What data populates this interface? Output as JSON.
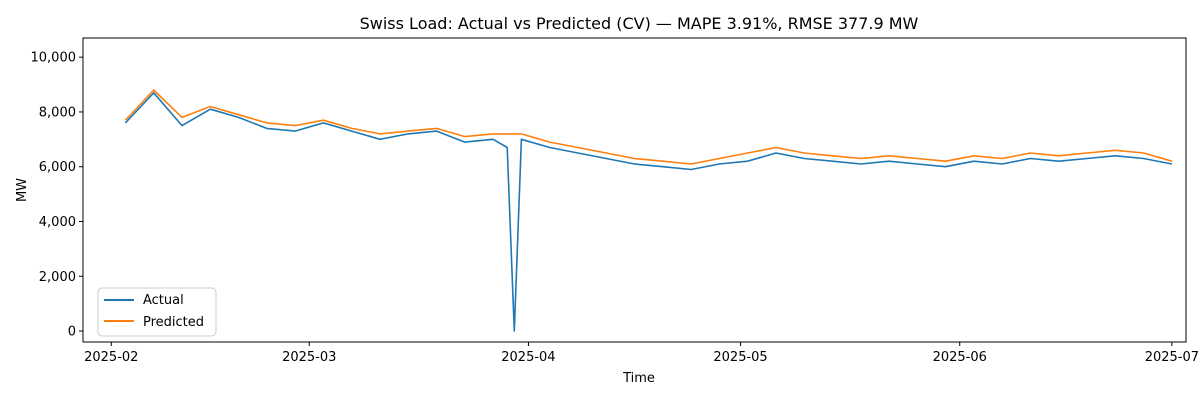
{
  "chart_data": {
    "type": "line",
    "title": "Swiss Load: Actual vs Predicted (CV) — MAPE 3.91%, RMSE 377.9 MW",
    "xlabel": "Time",
    "ylabel": "MW",
    "x_tick_labels": [
      "2025-02",
      "2025-03",
      "2025-04",
      "2025-05",
      "2025-06",
      "2025-07"
    ],
    "x_tick_dates": [
      "2025-02-01",
      "2025-03-01",
      "2025-04-01",
      "2025-05-01",
      "2025-06-01",
      "2025-07-01"
    ],
    "y_tick_values": [
      0,
      2000,
      4000,
      6000,
      8000,
      10000
    ],
    "y_tick_labels": [
      "0",
      "2,000",
      "4,000",
      "6,000",
      "8,000",
      "10,000"
    ],
    "xlim": [
      "2025-01-28",
      "2025-07-03"
    ],
    "ylim": [
      -400,
      10700
    ],
    "grid": false,
    "legend_position": "lower-left",
    "series": [
      {
        "name": "Actual",
        "color": "#1f77b4",
        "x": [
          "2025-02-03",
          "2025-02-07",
          "2025-02-11",
          "2025-02-15",
          "2025-02-19",
          "2025-02-23",
          "2025-02-27",
          "2025-03-03",
          "2025-03-07",
          "2025-03-11",
          "2025-03-15",
          "2025-03-19",
          "2025-03-23",
          "2025-03-27",
          "2025-03-29",
          "2025-03-30",
          "2025-03-31",
          "2025-04-04",
          "2025-04-08",
          "2025-04-12",
          "2025-04-16",
          "2025-04-20",
          "2025-04-24",
          "2025-04-28",
          "2025-05-02",
          "2025-05-06",
          "2025-05-10",
          "2025-05-14",
          "2025-05-18",
          "2025-05-22",
          "2025-05-26",
          "2025-05-30",
          "2025-06-03",
          "2025-06-07",
          "2025-06-11",
          "2025-06-15",
          "2025-06-19",
          "2025-06-23",
          "2025-06-27",
          "2025-07-01"
        ],
        "y": [
          7600,
          8700,
          7500,
          8100,
          7800,
          7400,
          7300,
          7600,
          7300,
          7000,
          7200,
          7300,
          6900,
          7000,
          6700,
          0,
          7000,
          6700,
          6500,
          6300,
          6100,
          6000,
          5900,
          6100,
          6200,
          6500,
          6300,
          6200,
          6100,
          6200,
          6100,
          6000,
          6200,
          6100,
          6300,
          6200,
          6300,
          6400,
          6300,
          6100
        ]
      },
      {
        "name": "Predicted",
        "color": "#ff7f0e",
        "x": [
          "2025-02-03",
          "2025-02-07",
          "2025-02-11",
          "2025-02-15",
          "2025-02-19",
          "2025-02-23",
          "2025-02-27",
          "2025-03-03",
          "2025-03-07",
          "2025-03-11",
          "2025-03-15",
          "2025-03-19",
          "2025-03-23",
          "2025-03-27",
          "2025-03-31",
          "2025-04-04",
          "2025-04-08",
          "2025-04-12",
          "2025-04-16",
          "2025-04-20",
          "2025-04-24",
          "2025-04-28",
          "2025-05-02",
          "2025-05-06",
          "2025-05-10",
          "2025-05-14",
          "2025-05-18",
          "2025-05-22",
          "2025-05-26",
          "2025-05-30",
          "2025-06-03",
          "2025-06-07",
          "2025-06-11",
          "2025-06-15",
          "2025-06-19",
          "2025-06-23",
          "2025-06-27",
          "2025-07-01"
        ],
        "y": [
          7700,
          8800,
          7800,
          8200,
          7900,
          7600,
          7500,
          7700,
          7400,
          7200,
          7300,
          7400,
          7100,
          7200,
          7200,
          6900,
          6700,
          6500,
          6300,
          6200,
          6100,
          6300,
          6500,
          6700,
          6500,
          6400,
          6300,
          6400,
          6300,
          6200,
          6400,
          6300,
          6500,
          6400,
          6500,
          6600,
          6500,
          6200
        ]
      }
    ]
  }
}
